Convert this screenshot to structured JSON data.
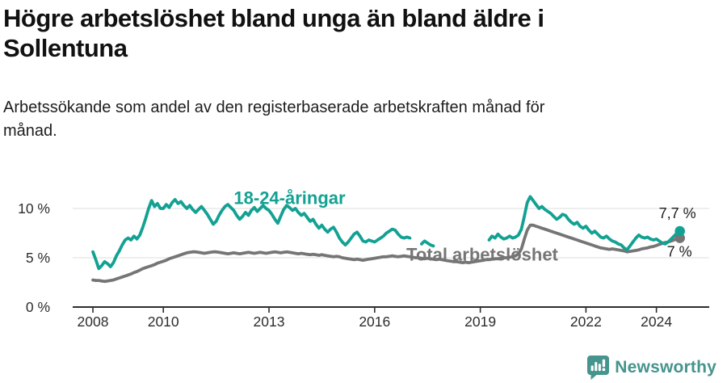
{
  "header": {
    "title_lines": [
      "Högre arbetslöshet bland unga än bland äldre i",
      "Sollentuna"
    ],
    "subtitle_lines": [
      "Arbetssökande som andel av den registerbaserade arbetskraften månad för",
      "månad."
    ]
  },
  "footer": {
    "brand": "Newsworthy",
    "logo_icon": "bar-chart-speech-bubble-icon"
  },
  "colors": {
    "youth": "#13a193",
    "total": "#757575",
    "grid": "#e4e4e4",
    "axis": "#2d2d2d",
    "brand": "#45948d",
    "title_text": "#111111"
  },
  "chart_data": {
    "type": "line",
    "title": "Högre arbetslöshet bland unga än bland äldre i Sollentuna",
    "subtitle": "Arbetssökande som andel av den registerbaserade arbetskraften månad för månad.",
    "unit": "%",
    "frequency": "monthly",
    "x_axis": {
      "ticks": [
        2008,
        2010,
        2013,
        2016,
        2019,
        2022,
        2024
      ],
      "range_years": [
        2007.4,
        2025.5
      ]
    },
    "y_axis": {
      "tick_values": [
        0,
        5,
        10
      ],
      "tick_labels": [
        "0 %",
        "5 %",
        "10 %"
      ],
      "range": [
        0,
        12.5
      ],
      "gridlines": true
    },
    "legend_position": "inline-labels",
    "series": [
      {
        "name": "18-24-åringar",
        "color": "#13a193",
        "end_label": "7,7 %",
        "end_value": 7.7,
        "segments": [
          {
            "start": 2008.0,
            "values": [
              5.6,
              4.8,
              3.9,
              4.2,
              4.6,
              4.4,
              4.1,
              4.5,
              5.2,
              5.7,
              6.3,
              6.8,
              7.0,
              6.8,
              7.2,
              6.9,
              7.3,
              8.1,
              9.0,
              10.0,
              10.8,
              10.2,
              10.5,
              10.0,
              10.0,
              10.4,
              10.1,
              10.6,
              10.9,
              10.5,
              10.7,
              10.3,
              10.0,
              10.3,
              9.9,
              9.6,
              9.9,
              10.2,
              9.8,
              9.4,
              8.9,
              8.4,
              8.7,
              9.3,
              9.8,
              10.2,
              10.4,
              10.1,
              9.8,
              9.3,
              8.9,
              9.2,
              9.6,
              9.3,
              9.8,
              10.1,
              9.7,
              10.0,
              10.3,
              10.0,
              9.8,
              9.4,
              8.9,
              8.5,
              9.2,
              9.9,
              10.3,
              10.1,
              9.8,
              10.0,
              9.6,
              9.3,
              9.5,
              9.1,
              8.7,
              8.9,
              8.4,
              8.0,
              8.3,
              7.9,
              7.6,
              7.9,
              8.1,
              7.6,
              7.0,
              6.6,
              6.3,
              6.6,
              7.0,
              7.4,
              7.6,
              7.2,
              6.7,
              6.6,
              6.8,
              6.7,
              6.6,
              6.8,
              7.0,
              7.2,
              7.5,
              7.7,
              7.9,
              7.8,
              7.4,
              7.1,
              7.0,
              7.1,
              7.0
            ]
          },
          {
            "start": 2017.333,
            "values": [
              6.4,
              6.7,
              6.5,
              6.3,
              6.2
            ]
          },
          {
            "start": 2019.25,
            "values": [
              6.8,
              7.2,
              7.0,
              7.4,
              7.1,
              6.9,
              7.0,
              7.2,
              7.0,
              7.1,
              7.3,
              7.9,
              9.2,
              10.6,
              11.2,
              10.8,
              10.4,
              10.0,
              10.2,
              9.9,
              9.7,
              9.5,
              9.2,
              8.9,
              9.1,
              9.4,
              9.3,
              8.9,
              8.6,
              8.4,
              8.6,
              8.2,
              8.0,
              8.2,
              7.8,
              7.5,
              7.7,
              7.4,
              7.1,
              7.0,
              7.2,
              6.9,
              6.7,
              6.6,
              6.4,
              6.3,
              6.0,
              5.8,
              6.2,
              6.6,
              7.0,
              7.3,
              7.1,
              7.0,
              7.1,
              6.9,
              6.8,
              6.9,
              6.7,
              6.5,
              6.4,
              6.6,
              6.9,
              7.2,
              7.5,
              7.7
            ]
          }
        ]
      },
      {
        "name": "Total arbetslöshet",
        "color": "#757575",
        "end_label": "7 %",
        "end_value": 7.0,
        "segments": [
          {
            "start": 2008.0,
            "values": [
              2.75,
              2.7,
              2.7,
              2.65,
              2.6,
              2.65,
              2.7,
              2.75,
              2.85,
              2.95,
              3.05,
              3.15,
              3.25,
              3.35,
              3.5,
              3.6,
              3.75,
              3.9,
              4.0,
              4.1,
              4.2,
              4.3,
              4.45,
              4.55,
              4.65,
              4.75,
              4.9,
              5.0,
              5.1,
              5.2,
              5.3,
              5.4,
              5.5,
              5.55,
              5.6,
              5.6,
              5.55,
              5.5,
              5.45,
              5.5,
              5.55,
              5.6,
              5.6,
              5.55,
              5.5,
              5.45,
              5.4,
              5.45,
              5.5,
              5.45,
              5.4,
              5.45,
              5.5,
              5.55,
              5.5,
              5.45,
              5.5,
              5.55,
              5.5,
              5.45,
              5.5,
              5.55,
              5.6,
              5.55,
              5.5,
              5.55,
              5.6,
              5.55,
              5.5,
              5.45,
              5.4,
              5.45,
              5.4,
              5.35,
              5.3,
              5.35,
              5.3,
              5.25,
              5.3,
              5.25,
              5.2,
              5.15,
              5.1,
              5.15,
              5.1,
              5.0,
              4.95,
              4.9,
              4.85,
              4.8,
              4.85,
              4.8,
              4.75,
              4.8,
              4.85,
              4.9,
              4.95,
              5.0,
              5.05,
              5.1,
              5.1,
              5.15,
              5.2,
              5.15,
              5.1,
              5.15,
              5.2,
              5.15,
              5.1,
              5.05,
              5.0,
              5.0,
              4.95,
              4.9,
              4.95,
              4.9,
              4.85,
              4.8,
              4.85,
              4.8,
              4.75,
              4.7,
              4.65,
              4.6,
              4.6,
              4.55,
              4.5,
              4.55,
              4.5,
              4.55,
              4.6,
              4.65,
              4.7,
              4.75,
              4.8,
              4.8,
              4.85,
              4.9,
              4.9,
              4.95,
              5.0,
              5.0,
              5.05,
              5.1,
              5.2,
              5.4,
              5.9,
              6.9,
              7.8,
              8.3,
              8.3,
              8.2,
              8.1,
              8.0,
              7.9,
              7.8,
              7.7,
              7.6,
              7.5,
              7.4,
              7.3,
              7.2,
              7.1,
              7.0,
              6.9,
              6.8,
              6.7,
              6.6,
              6.5,
              6.4,
              6.3,
              6.2,
              6.1,
              6.0,
              5.95,
              5.9,
              5.85,
              5.9,
              5.85,
              5.8,
              5.75,
              5.7,
              5.6,
              5.65,
              5.7,
              5.75,
              5.8,
              5.9,
              5.95,
              6.0,
              6.1,
              6.15,
              6.25,
              6.35,
              6.45,
              6.55,
              6.6,
              6.7,
              6.8,
              6.9,
              7.0
            ]
          }
        ]
      }
    ],
    "annotations": [
      {
        "text": "18-24-åringar",
        "x": 2012.0,
        "y": 10.45,
        "color": "#13a193"
      },
      {
        "text": "Total arbetslöshet",
        "x": 2016.9,
        "y": 4.7,
        "color": "#757575"
      }
    ]
  }
}
